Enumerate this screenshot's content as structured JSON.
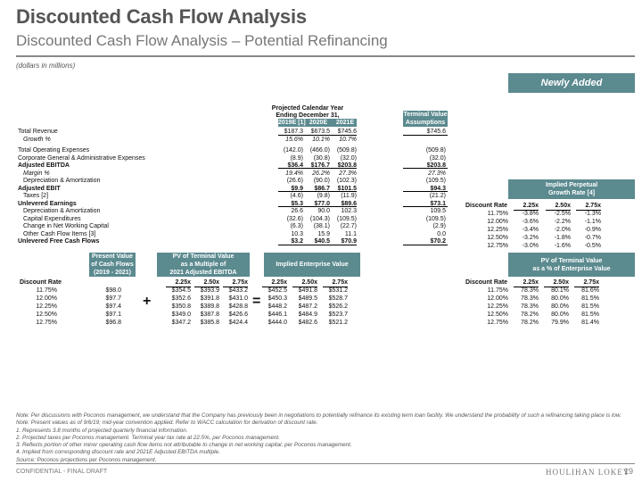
{
  "title": "Discounted Cash Flow Analysis",
  "subtitle": "Discounted Cash Flow Analysis – Potential Refinancing",
  "units": "(dollars in millions)",
  "badge": "Newly Added",
  "top_table": {
    "header_group": [
      "Projected Calendar Year",
      "Ending December 31,"
    ],
    "columns": [
      "2019E [1]",
      "2020E",
      "2021E"
    ],
    "tv_header": [
      "Terminal Value",
      "Assumptions"
    ],
    "rows": [
      {
        "label": "Total Revenue",
        "vals": [
          "$187.3",
          "$673.5",
          "$745.6"
        ],
        "tv": "$745.6",
        "style": ""
      },
      {
        "label": "Growth %",
        "vals": [
          "15.6%",
          "10.1%",
          "10.7%"
        ],
        "tv": "",
        "style": "ital"
      },
      {
        "label": "Total Operating Expenses",
        "vals": [
          "(142.0)",
          "(466.0)",
          "(509.8)"
        ],
        "tv": "(509.8)",
        "style": ""
      },
      {
        "label": "Corporate General & Administrative Expenses",
        "vals": [
          "(8.9)",
          "(30.8)",
          "(32.0)"
        ],
        "tv": "(32.0)",
        "style": ""
      },
      {
        "label": "Adjusted EBITDA",
        "vals": [
          "$36.4",
          "$176.7",
          "$203.8"
        ],
        "tv": "$203.8",
        "style": "bold"
      },
      {
        "label": "Margin %",
        "vals": [
          "19.4%",
          "26.2%",
          "27.3%"
        ],
        "tv": "27.3%",
        "style": "ital"
      },
      {
        "label": "Depreciation & Amortization",
        "vals": [
          "(26.6)",
          "(90.0)",
          "(102.3)"
        ],
        "tv": "(109.5)",
        "style": ""
      },
      {
        "label": "Adjusted EBIT",
        "vals": [
          "$9.9",
          "$86.7",
          "$101.5"
        ],
        "tv": "$94.3",
        "style": "bold"
      },
      {
        "label": "Taxes [2]",
        "vals": [
          "(4.6)",
          "(9.8)",
          "(11.9)"
        ],
        "tv": "(21.2)",
        "style": ""
      },
      {
        "label": "Unlevered Earnings",
        "vals": [
          "$5.3",
          "$77.0",
          "$89.6"
        ],
        "tv": "$73.1",
        "style": "bold"
      },
      {
        "label": "Depreciation & Amortization",
        "vals": [
          "26.6",
          "90.0",
          "102.3"
        ],
        "tv": "109.5",
        "style": ""
      },
      {
        "label": "Capital Expenditures",
        "vals": [
          "(32.6)",
          "(104.3)",
          "(109.5)"
        ],
        "tv": "(109.5)",
        "style": ""
      },
      {
        "label": "Change in Net Working Capital",
        "vals": [
          "(6.3)",
          "(38.1)",
          "(22.7)"
        ],
        "tv": "(2.9)",
        "style": ""
      },
      {
        "label": "Other Cash Flow Items [3]",
        "vals": [
          "10.3",
          "15.9",
          "11.1"
        ],
        "tv": "0.0",
        "style": ""
      },
      {
        "label": "Unlevered Free Cash Flows",
        "vals": [
          "$3.2",
          "$40.5",
          "$70.9"
        ],
        "tv": "$70.2",
        "style": "bold"
      }
    ]
  },
  "perpetual": {
    "header": [
      "Implied Perpetual",
      "Growth Rate [4]"
    ],
    "col_label": "Discount Rate",
    "cols": [
      "2.25x",
      "2.50x",
      "2.75x"
    ],
    "rows": [
      {
        "rate": "11.75%",
        "vals": [
          "-3.8%",
          "-2.5%",
          "-1.3%"
        ]
      },
      {
        "rate": "12.00%",
        "vals": [
          "-3.6%",
          "-2.2%",
          "-1.1%"
        ]
      },
      {
        "rate": "12.25%",
        "vals": [
          "-3.4%",
          "-2.0%",
          "-0.9%"
        ]
      },
      {
        "rate": "12.50%",
        "vals": [
          "-3.2%",
          "-1.8%",
          "-0.7%"
        ]
      },
      {
        "rate": "12.75%",
        "vals": [
          "-3.0%",
          "-1.6%",
          "-0.5%"
        ]
      }
    ]
  },
  "bottom": {
    "pv_cf_header": [
      "Present Value",
      "of Cash Flows",
      "(2019 - 2021)"
    ],
    "pv_tv_header": [
      "PV of Terminal Value",
      "as a Multiple of",
      "2021 Adjusted EBITDA"
    ],
    "iev_header": [
      "Implied Enterprise Value"
    ],
    "pct_header": [
      "PV of Terminal Value",
      "as a % of Enterprise Value"
    ],
    "col_label": "Discount Rate",
    "cols": [
      "2.25x",
      "2.50x",
      "2.75x"
    ],
    "plus": "+",
    "equals": "=",
    "rows": [
      {
        "rate": "11.75%",
        "pv": "$98.0",
        "tv": [
          "$354.5",
          "$393.9",
          "$433.2"
        ],
        "iev": [
          "$452.5",
          "$491.8",
          "$531.2"
        ],
        "pct": [
          "78.3%",
          "80.1%",
          "81.6%"
        ]
      },
      {
        "rate": "12.00%",
        "pv": "$97.7",
        "tv": [
          "$352.6",
          "$391.8",
          "$431.0"
        ],
        "iev": [
          "$450.3",
          "$489.5",
          "$528.7"
        ],
        "pct": [
          "78.3%",
          "80.0%",
          "81.5%"
        ]
      },
      {
        "rate": "12.25%",
        "pv": "$97.4",
        "tv": [
          "$350.8",
          "$389.8",
          "$428.8"
        ],
        "iev": [
          "$448.2",
          "$487.2",
          "$526.2"
        ],
        "pct": [
          "78.3%",
          "80.0%",
          "81.5%"
        ]
      },
      {
        "rate": "12.50%",
        "pv": "$97.1",
        "tv": [
          "$349.0",
          "$387.8",
          "$426.6"
        ],
        "iev": [
          "$446.1",
          "$484.9",
          "$523.7"
        ],
        "pct": [
          "78.2%",
          "80.0%",
          "81.5%"
        ]
      },
      {
        "rate": "12.75%",
        "pv": "$96.8",
        "tv": [
          "$347.2",
          "$385.8",
          "$424.4"
        ],
        "iev": [
          "$444.0",
          "$482.6",
          "$521.2"
        ],
        "pct": [
          "78.2%",
          "79.9%",
          "81.4%"
        ]
      }
    ]
  },
  "notes": [
    "Note: Per discussions with Poconos management, we understand that the Company has previously been in negotiations to potentially refinance its existing term loan facility. We understand the probability of such a refinancing taking place is low.",
    "Note: Present values as of 9/6/19; mid-year convention applied. Refer to WACC calculation for derivation of discount rate.",
    "1.  Represents 3.8 months of projected quarterly financial information.",
    "2.  Projected taxes per Poconos management. Terminal year tax rate at 22.5%, per Poconos management.",
    "3.  Reflects portion of other minor operating cash flow items not attributable to change in net working capital, per Poconos management.",
    "4.  Implied from corresponding discount rate and 2021E Adjusted EBITDA multiple.",
    "Source: Poconos projections per Poconos management."
  ],
  "footer": {
    "left": "CONFIDENTIAL - FINAL DRAFT",
    "logo": "HOULIHAN LOKEY",
    "page": "19"
  },
  "colors": {
    "accent": "#5b8a8f",
    "title": "#555555"
  }
}
